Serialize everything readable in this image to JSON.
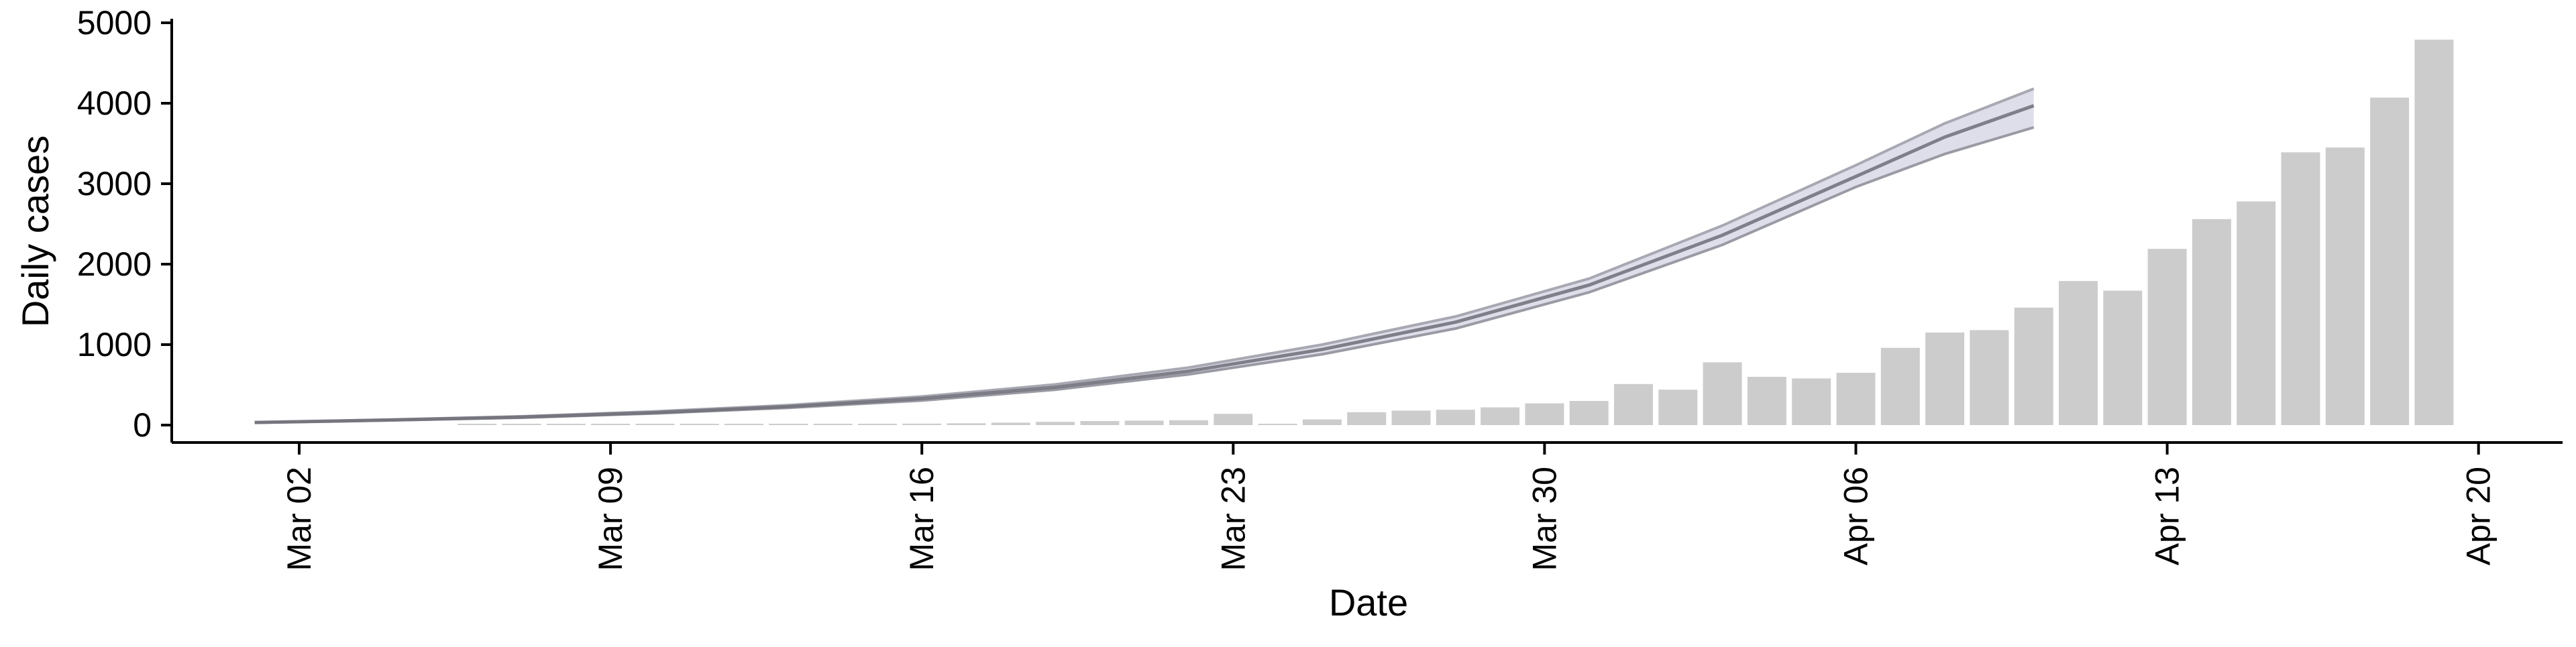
{
  "chart_data": {
    "type": "bar",
    "xlabel": "Date",
    "ylabel": "Daily cases",
    "x_ticks": [
      "Mar 02",
      "Mar 09",
      "Mar 16",
      "Mar 23",
      "Mar 30",
      "Apr 06",
      "Apr 13",
      "Apr 20"
    ],
    "y_ticks": [
      "0",
      "1000",
      "2000",
      "3000",
      "4000",
      "5000"
    ],
    "ylim": [
      -200,
      5000
    ],
    "grid": false,
    "bar_color": "#cccccc",
    "fan_color": "#d6d6e6",
    "line_color": "#6e6e78",
    "bars": {
      "dates": [
        "Mar 01",
        "Mar 02",
        "Mar 03",
        "Mar 04",
        "Mar 05",
        "Mar 06",
        "Mar 07",
        "Mar 08",
        "Mar 09",
        "Mar 10",
        "Mar 11",
        "Mar 12",
        "Mar 13",
        "Mar 14",
        "Mar 15",
        "Mar 16",
        "Mar 17",
        "Mar 18",
        "Mar 19",
        "Mar 20",
        "Mar 21",
        "Mar 22",
        "Mar 23",
        "Mar 24",
        "Mar 25",
        "Mar 26",
        "Mar 27",
        "Mar 28",
        "Mar 29",
        "Mar 30",
        "Mar 31",
        "Apr 01",
        "Apr 02",
        "Apr 03",
        "Apr 04",
        "Apr 05",
        "Apr 06",
        "Apr 07",
        "Apr 08",
        "Apr 09",
        "Apr 10",
        "Apr 11",
        "Apr 12",
        "Apr 13",
        "Apr 14",
        "Apr 15",
        "Apr 16",
        "Apr 17",
        "Apr 18",
        "Apr 19"
      ],
      "values": [
        0,
        0,
        0,
        0,
        0,
        2,
        4,
        3,
        2,
        5,
        4,
        8,
        10,
        12,
        14,
        18,
        22,
        30,
        40,
        50,
        55,
        60,
        140,
        2,
        70,
        160,
        180,
        190,
        220,
        270,
        300,
        510,
        440,
        780,
        600,
        580,
        650,
        960,
        1150,
        1180,
        1460,
        1790,
        1670,
        2190,
        2560,
        2780,
        3390,
        3450,
        4070,
        4790
      ]
    },
    "projection": {
      "dates": [
        "Mar 01",
        "Mar 04",
        "Mar 07",
        "Mar 10",
        "Mar 13",
        "Mar 16",
        "Mar 19",
        "Mar 22",
        "Mar 25",
        "Mar 28",
        "Mar 31",
        "Apr 03",
        "Apr 06",
        "Apr 08",
        "Apr 10"
      ],
      "upper": [
        35,
        68,
        108,
        170,
        248,
        355,
        505,
        715,
        1000,
        1350,
        1820,
        2480,
        3230,
        3750,
        4180
      ],
      "median": [
        32,
        62,
        100,
        155,
        230,
        330,
        470,
        670,
        940,
        1280,
        1740,
        2360,
        3090,
        3580,
        3970
      ],
      "lower": [
        30,
        58,
        92,
        145,
        215,
        305,
        440,
        630,
        880,
        1200,
        1650,
        2240,
        2960,
        3370,
        3700
      ]
    }
  }
}
